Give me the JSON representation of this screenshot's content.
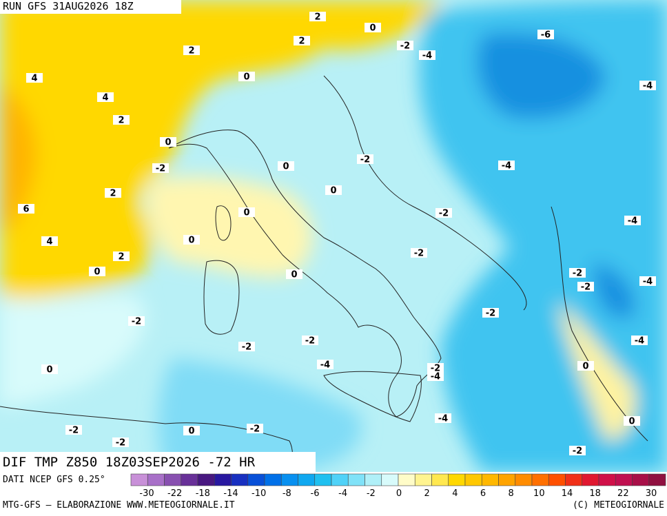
{
  "header": {
    "run": "RUN GFS 31AUG2026 18Z"
  },
  "footer": {
    "field": "DIF TMP Z850 18Z03SEP2026 -72 HR",
    "source": "DATI NCEP GFS 0.25°",
    "credit": "MTG-GFS – ELABORAZIONE WWW.METEOGIORNALE.IT",
    "copyright": "(C) METEOGIORNALE"
  },
  "contour_labels": [
    2,
    0,
    -2,
    -4,
    -6,
    2,
    2,
    4,
    0,
    -4,
    4,
    2,
    0,
    -2,
    -2,
    0,
    -4,
    0,
    2,
    6,
    0,
    -2,
    -4,
    4,
    0,
    -2,
    2,
    0,
    -2,
    0,
    -2,
    -4,
    -2,
    -2,
    -2,
    -2,
    -4,
    -4,
    -2,
    -4,
    0,
    0,
    -4,
    0,
    -2,
    0,
    -2,
    -2,
    -2
  ],
  "colorbar": {
    "colors": [
      "#c890d8",
      "#a870c8",
      "#8850b0",
      "#683098",
      "#481880",
      "#2818a0",
      "#1830c0",
      "#0850d8",
      "#0070e8",
      "#0890f0",
      "#10a8f0",
      "#20c0f0",
      "#50d2f8",
      "#80e2f8",
      "#b0f0f8",
      "#d8fbfb",
      "#fffcc8",
      "#fff490",
      "#ffe850",
      "#ffd800",
      "#ffc800",
      "#ffb800",
      "#ffa400",
      "#ff8c00",
      "#ff7000",
      "#ff5000",
      "#f03018",
      "#e01830",
      "#d01048",
      "#c01050",
      "#a81048",
      "#901040"
    ],
    "labels": [
      -30,
      -22,
      -18,
      -14,
      -10,
      -8,
      -6,
      -4,
      -2,
      0,
      2,
      4,
      6,
      8,
      10,
      14,
      18,
      22,
      30
    ]
  }
}
